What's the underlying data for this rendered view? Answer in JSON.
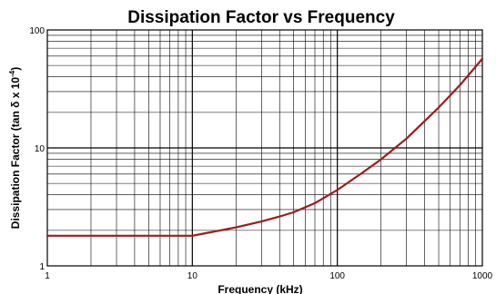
{
  "chart_data": {
    "type": "line",
    "title": "Dissipation Factor vs Frequency",
    "xlabel": "Frequency (kHz)",
    "ylabel_main": "Dissipation Factor (tan δ x 10",
    "ylabel_sup": "-4",
    "ylabel_close": ")",
    "x_scale": "log",
    "y_scale": "log",
    "xlim": [
      1,
      1000
    ],
    "ylim": [
      1,
      100
    ],
    "grid": true,
    "x_ticks": [
      "1",
      "10",
      "100",
      "1000"
    ],
    "y_ticks": [
      "1",
      "10",
      "100"
    ],
    "line_color": "#9b1b1b",
    "series": [
      {
        "x": [
          1,
          2,
          5,
          10,
          12,
          15,
          20,
          30,
          40,
          50,
          70,
          100,
          150,
          200,
          300,
          500,
          700,
          1000
        ],
        "y": [
          1.8,
          1.8,
          1.8,
          1.8,
          1.88,
          1.98,
          2.12,
          2.38,
          2.62,
          2.85,
          3.4,
          4.4,
          6.2,
          8.0,
          12.0,
          22.0,
          34.0,
          57.0
        ]
      }
    ]
  }
}
